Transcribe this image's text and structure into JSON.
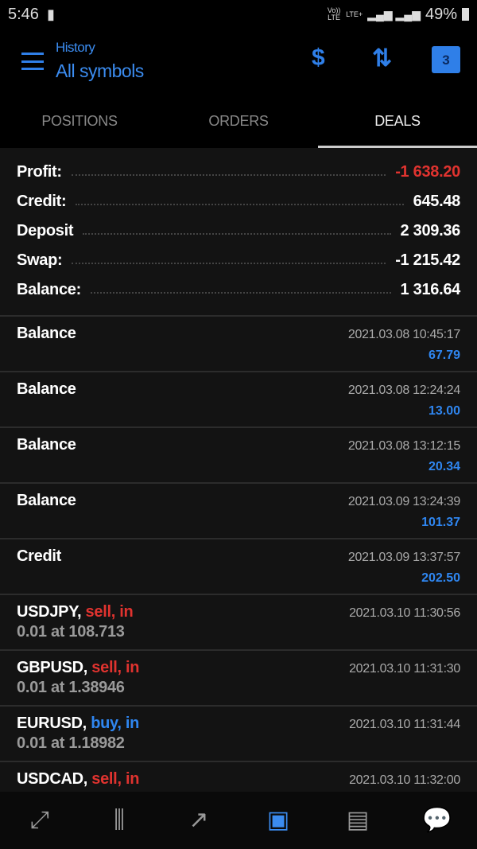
{
  "status": {
    "time": "5:46",
    "network1": "Vo)) LTE",
    "network2": "LTE+",
    "battery": "49%"
  },
  "header": {
    "subtitle": "History",
    "title": "All symbols",
    "calendar_day": "3"
  },
  "tabs": [
    {
      "label": "POSITIONS",
      "active": false
    },
    {
      "label": "ORDERS",
      "active": false
    },
    {
      "label": "DEALS",
      "active": true
    }
  ],
  "summary": [
    {
      "label": "Profit:",
      "value": "-1 638.20",
      "color": "red"
    },
    {
      "label": "Credit:",
      "value": "645.48"
    },
    {
      "label": "Deposit",
      "value": "2 309.36"
    },
    {
      "label": "Swap:",
      "value": "-1 215.42"
    },
    {
      "label": "Balance:",
      "value": "1 316.64"
    }
  ],
  "deals": [
    {
      "symbol": "Balance",
      "time": "2021.03.08 10:45:17",
      "amount": "67.79"
    },
    {
      "symbol": "Balance",
      "time": "2021.03.08 12:24:24",
      "amount": "13.00"
    },
    {
      "symbol": "Balance",
      "time": "2021.03.08 13:12:15",
      "amount": "20.34"
    },
    {
      "symbol": "Balance",
      "time": "2021.03.09 13:24:39",
      "amount": "101.37"
    },
    {
      "symbol": "Credit",
      "time": "2021.03.09 13:37:57",
      "amount": "202.50"
    },
    {
      "symbol": "USDJPY,",
      "action": "sell, in",
      "action_color": "red",
      "detail": "0.01 at 108.713",
      "time": "2021.03.10 11:30:56"
    },
    {
      "symbol": "GBPUSD,",
      "action": "sell, in",
      "action_color": "red",
      "detail": "0.01 at 1.38946",
      "time": "2021.03.10 11:31:30"
    },
    {
      "symbol": "EURUSD,",
      "action": "buy, in",
      "action_color": "blue",
      "detail": "0.01 at 1.18982",
      "time": "2021.03.10 11:31:44"
    },
    {
      "symbol": "USDCAD,",
      "action": "sell, in",
      "action_color": "red",
      "time": "2021.03.10 11:32:00"
    }
  ],
  "nav": [
    "quotes-icon",
    "chart-icon",
    "trade-icon",
    "history-icon",
    "news-icon",
    "messages-icon"
  ],
  "colors": {
    "accent": "#2f86f0",
    "loss": "#e0332f",
    "background": "#131313"
  }
}
